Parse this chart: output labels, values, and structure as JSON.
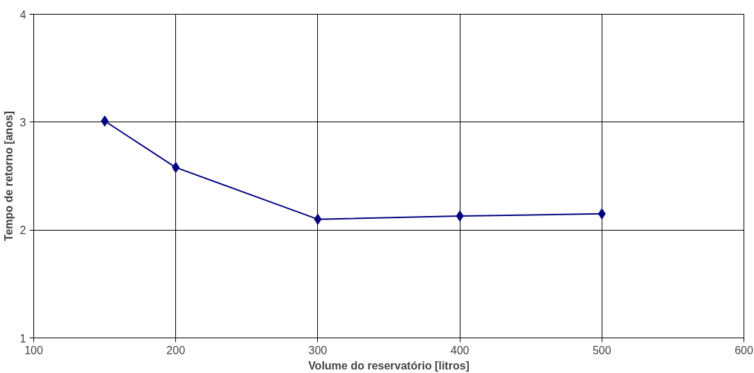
{
  "chart_data": {
    "type": "line",
    "xlabel": "Volume do reservatório [litros]",
    "ylabel": "Tempo de retorno [anos]",
    "x": [
      150,
      200,
      300,
      400,
      500
    ],
    "series": [
      {
        "color": "#000080",
        "values": [
          3.01,
          2.58,
          2.1,
          2.13,
          2.15
        ]
      }
    ],
    "xlim": [
      100,
      600
    ],
    "xticks": [
      100,
      200,
      300,
      400,
      500,
      600
    ],
    "ylim": [
      1,
      4
    ],
    "yticks": [
      1,
      2,
      3,
      4
    ],
    "grid": true,
    "marker": "diamond",
    "line_style": "solid"
  }
}
